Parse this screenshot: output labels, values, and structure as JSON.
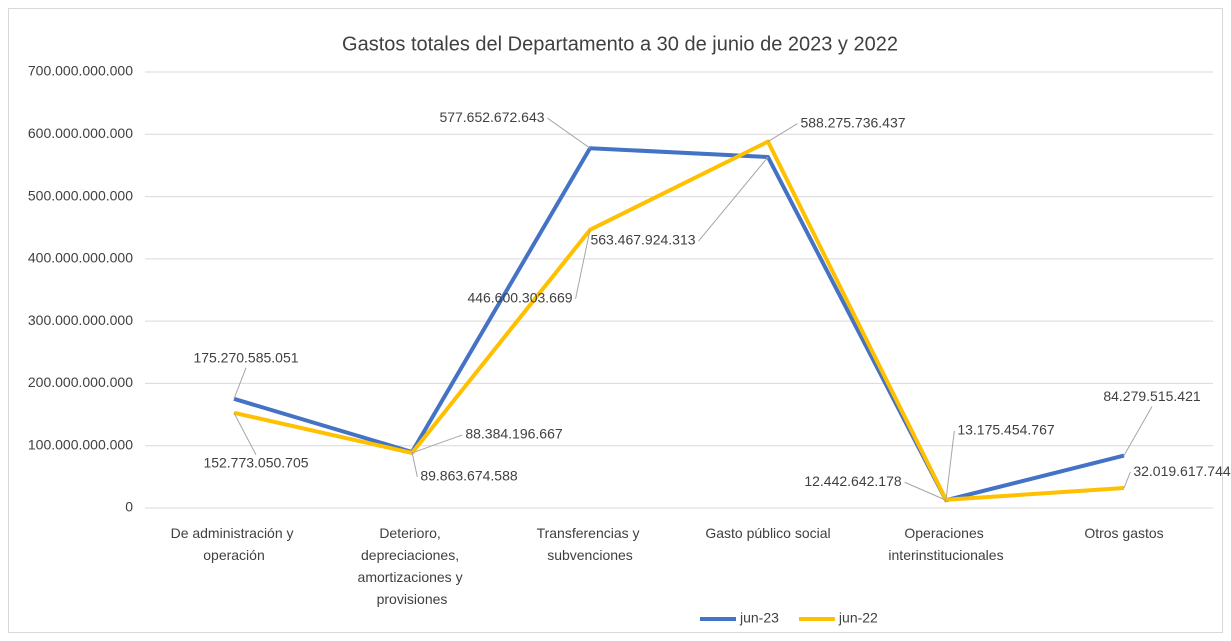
{
  "chart_data": {
    "type": "line",
    "title": "Gastos totales del Departamento a 30 de junio de 2023 y 2022",
    "categories": [
      "De administración y operación",
      "Deterioro, depreciaciones, amortizaciones y provisiones",
      "Transferencias y subvenciones",
      "Gasto público social",
      "Operaciones interinstitucionales",
      "Otros gastos"
    ],
    "series": [
      {
        "name": "jun-23",
        "color": "#4472c4",
        "values": [
          175270585051,
          89863674588,
          577652672643,
          563467924313,
          12442642178,
          84279515421
        ],
        "value_labels": [
          "175.270.585.051",
          "89.863.674.588",
          "577.652.672.643",
          "563.467.924.313",
          "12.442.642.178",
          "84.279.515.421"
        ]
      },
      {
        "name": "jun-22",
        "color": "#ffc000",
        "values": [
          152773050705,
          88384196667,
          446600303669,
          588275736437,
          13175454767,
          32019617744
        ],
        "value_labels": [
          "152.773.050.705",
          "88.384.196.667",
          "446.600.303.669",
          "588.275.736.437",
          "13.175.454.767",
          "32.019.617.744"
        ]
      }
    ],
    "ylim": [
      0,
      700000000000
    ],
    "yticks": [
      0,
      {
        "value": 100000000000,
        "label": "100.000.000.000"
      },
      {
        "value": 200000000000,
        "label": "200.000.000.000"
      },
      {
        "value": 300000000000,
        "label": "300.000.000.000"
      },
      {
        "value": 400000000000,
        "label": "400.000.000.000"
      },
      {
        "value": 500000000000,
        "label": "500.000.000.000"
      },
      {
        "value": 600000000000,
        "label": "600.000.000.000"
      },
      {
        "value": 700000000000,
        "label": "700.000.000.000"
      }
    ],
    "grid": true,
    "legend": "bottom"
  }
}
